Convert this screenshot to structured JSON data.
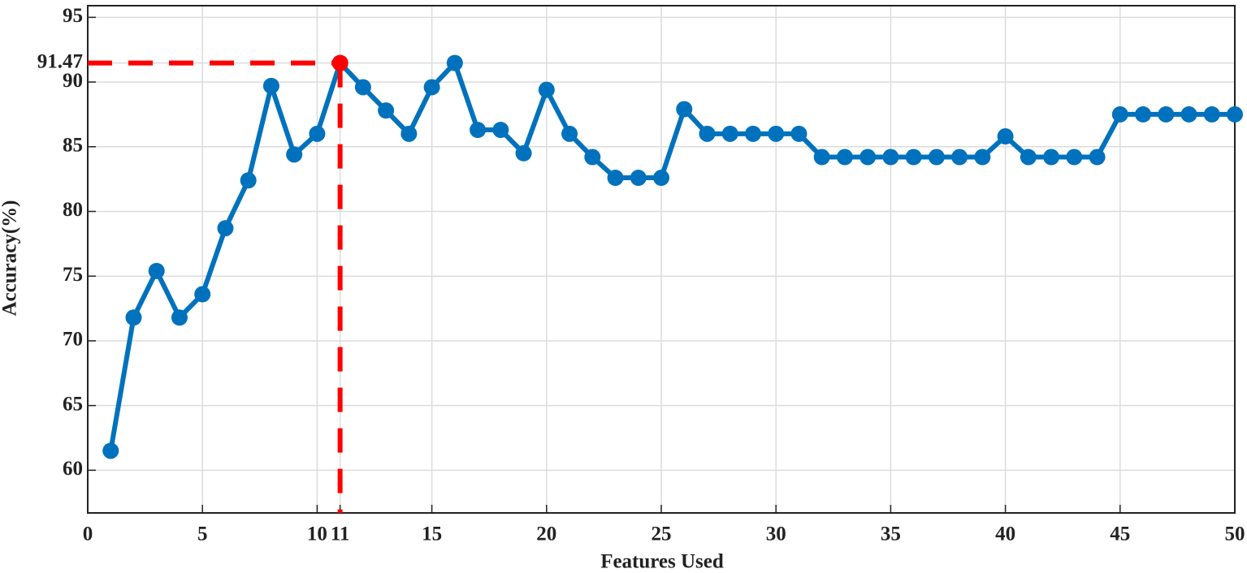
{
  "chart_data": {
    "type": "line",
    "xlabel": "Features Used",
    "ylabel": "Accuracy(%)",
    "x": [
      1,
      2,
      3,
      4,
      5,
      6,
      7,
      8,
      9,
      10,
      11,
      12,
      13,
      14,
      15,
      16,
      17,
      18,
      19,
      20,
      21,
      22,
      23,
      24,
      25,
      26,
      27,
      28,
      29,
      30,
      31,
      32,
      33,
      34,
      35,
      36,
      37,
      38,
      39,
      40,
      41,
      42,
      43,
      44,
      45,
      46,
      47,
      48,
      49,
      50
    ],
    "series": [
      {
        "color": "#0072bd",
        "values": [
          61.5,
          71.8,
          75.4,
          71.8,
          73.6,
          78.7,
          82.4,
          89.7,
          84.4,
          86.0,
          91.47,
          89.6,
          87.8,
          86.0,
          89.6,
          91.47,
          86.3,
          86.3,
          84.5,
          89.4,
          86.0,
          84.2,
          82.6,
          82.6,
          82.6,
          87.9,
          86.0,
          86.0,
          86.0,
          86.0,
          86.0,
          84.2,
          84.2,
          84.2,
          84.2,
          84.2,
          84.2,
          84.2,
          84.2,
          85.8,
          84.2,
          84.2,
          84.2,
          84.2,
          87.5,
          87.5,
          87.5,
          87.5,
          87.5,
          87.5
        ]
      }
    ],
    "highlight": {
      "x": 11,
      "y": 91.47,
      "color": "#ff0000"
    },
    "xlim": [
      0,
      50
    ],
    "xticks": [
      0,
      5,
      10,
      11,
      15,
      20,
      25,
      30,
      35,
      40,
      45,
      50
    ],
    "ylim": [
      56.7,
      95.9
    ],
    "yticks": [
      60,
      65,
      70,
      75,
      80,
      85,
      90,
      91.47,
      95
    ],
    "grid": true
  }
}
